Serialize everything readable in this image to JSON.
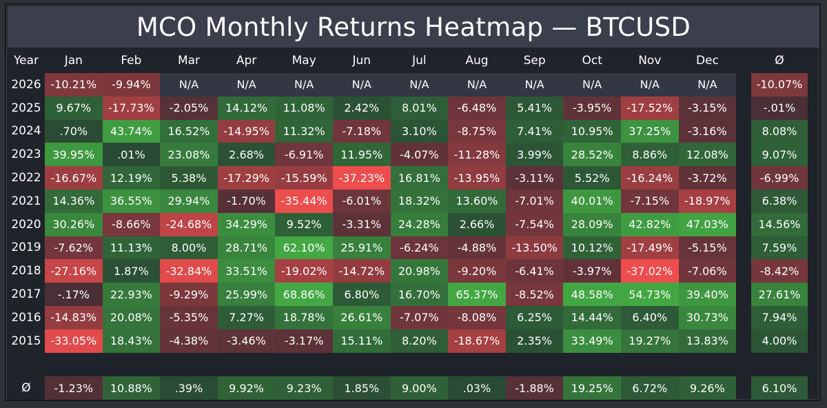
{
  "title": "MCO Monthly Returns Heatmap — BTCUSD",
  "chart_data": {
    "type": "heatmap",
    "title": "MCO Monthly Returns Heatmap — BTCUSD",
    "corner_label": "Year",
    "columns": [
      "Jan",
      "Feb",
      "Mar",
      "Apr",
      "May",
      "Jun",
      "Jul",
      "Aug",
      "Sep",
      "Oct",
      "Nov",
      "Dec"
    ],
    "avg_label": "Ø",
    "na_text": "N/A",
    "rows": [
      {
        "year": "2026",
        "values": [
          "-10.21%",
          "-9.94%",
          "N/A",
          "N/A",
          "N/A",
          "N/A",
          "N/A",
          "N/A",
          "N/A",
          "N/A",
          "N/A",
          "N/A"
        ],
        "avg": "-10.07%"
      },
      {
        "year": "2025",
        "values": [
          "9.67%",
          "-17.73%",
          "-2.05%",
          "14.12%",
          "11.08%",
          "2.42%",
          "8.01%",
          "-6.48%",
          "5.41%",
          "-3.95%",
          "-17.52%",
          "-3.15%"
        ],
        "avg": "-.01%"
      },
      {
        "year": "2024",
        "values": [
          ".70%",
          "43.74%",
          "16.52%",
          "-14.95%",
          "11.32%",
          "-7.18%",
          "3.10%",
          "-8.75%",
          "7.41%",
          "10.95%",
          "37.25%",
          "-3.16%"
        ],
        "avg": "8.08%"
      },
      {
        "year": "2023",
        "values": [
          "39.95%",
          ".01%",
          "23.08%",
          "2.68%",
          "-6.91%",
          "11.95%",
          "-4.07%",
          "-11.28%",
          "3.99%",
          "28.52%",
          "8.86%",
          "12.08%"
        ],
        "avg": "9.07%"
      },
      {
        "year": "2022",
        "values": [
          "-16.67%",
          "12.19%",
          "5.38%",
          "-17.29%",
          "-15.59%",
          "-37.23%",
          "16.81%",
          "-13.95%",
          "-3.11%",
          "5.52%",
          "-16.24%",
          "-3.72%"
        ],
        "avg": "-6.99%"
      },
      {
        "year": "2021",
        "values": [
          "14.36%",
          "36.55%",
          "29.94%",
          "-1.70%",
          "-35.44%",
          "-6.01%",
          "18.32%",
          "13.60%",
          "-7.01%",
          "40.01%",
          "-7.15%",
          "-18.97%"
        ],
        "avg": "6.38%"
      },
      {
        "year": "2020",
        "values": [
          "30.26%",
          "-8.66%",
          "-24.68%",
          "34.29%",
          "9.52%",
          "-3.31%",
          "24.28%",
          "2.66%",
          "-7.54%",
          "28.09%",
          "42.82%",
          "47.03%"
        ],
        "avg": "14.56%"
      },
      {
        "year": "2019",
        "values": [
          "-7.62%",
          "11.13%",
          "8.00%",
          "28.71%",
          "62.10%",
          "25.91%",
          "-6.24%",
          "-4.88%",
          "-13.50%",
          "10.12%",
          "-17.49%",
          "-5.15%"
        ],
        "avg": "7.59%"
      },
      {
        "year": "2018",
        "values": [
          "-27.16%",
          "1.87%",
          "-32.84%",
          "33.51%",
          "-19.02%",
          "-14.72%",
          "20.98%",
          "-9.20%",
          "-6.41%",
          "-3.97%",
          "-37.02%",
          "-7.06%"
        ],
        "avg": "-8.42%"
      },
      {
        "year": "2017",
        "values": [
          "-.17%",
          "22.93%",
          "-9.29%",
          "25.99%",
          "68.86%",
          "6.80%",
          "16.70%",
          "65.37%",
          "-8.52%",
          "48.58%",
          "54.73%",
          "39.40%"
        ],
        "avg": "27.61%"
      },
      {
        "year": "2016",
        "values": [
          "-14.83%",
          "20.08%",
          "-5.35%",
          "7.27%",
          "18.78%",
          "26.61%",
          "-7.07%",
          "-8.08%",
          "6.25%",
          "14.44%",
          "6.40%",
          "30.73%"
        ],
        "avg": "7.94%"
      },
      {
        "year": "2015",
        "values": [
          "-33.05%",
          "18.43%",
          "-4.38%",
          "-3.46%",
          "-3.17%",
          "15.11%",
          "8.20%",
          "-18.67%",
          "2.35%",
          "33.49%",
          "19.27%",
          "13.83%"
        ],
        "avg": "4.00%"
      }
    ],
    "avg_row": {
      "label": "Ø",
      "values": [
        "-1.23%",
        "10.88%",
        ".39%",
        "9.92%",
        "9.23%",
        "1.85%",
        "9.00%",
        ".03%",
        "-1.88%",
        "19.25%",
        "6.72%",
        "9.26%"
      ],
      "avg": "6.10%"
    },
    "colors": {
      "positive_max": "#43a843",
      "positive_min": "#294a34",
      "negative_min": "#4a2f36",
      "negative_max": "#ee4d4d",
      "na": "#333743",
      "background": "#1f232a",
      "title_bar": "#3b3f4c"
    }
  }
}
